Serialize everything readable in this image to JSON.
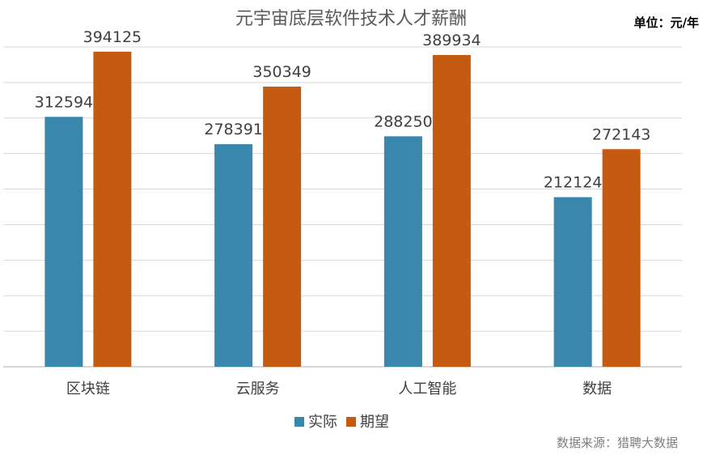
{
  "chart_data": {
    "type": "bar",
    "title": "元宇宙底层软件技术人才薪酬",
    "unit_label": "单位：元/年",
    "source": "数据来源：猎聘大数据",
    "categories": [
      "区块链",
      "云服务",
      "人工智能",
      "数据"
    ],
    "series": [
      {
        "name": "实际",
        "color": "#3a87ad",
        "values": [
          312594,
          278391,
          288250,
          212124
        ]
      },
      {
        "name": "期望",
        "color": "#c55a11",
        "values": [
          394125,
          350349,
          389934,
          272143
        ]
      }
    ],
    "ylim": [
      0,
      400000
    ],
    "y_step": 44444,
    "grid": true,
    "legend_position": "bottom"
  }
}
